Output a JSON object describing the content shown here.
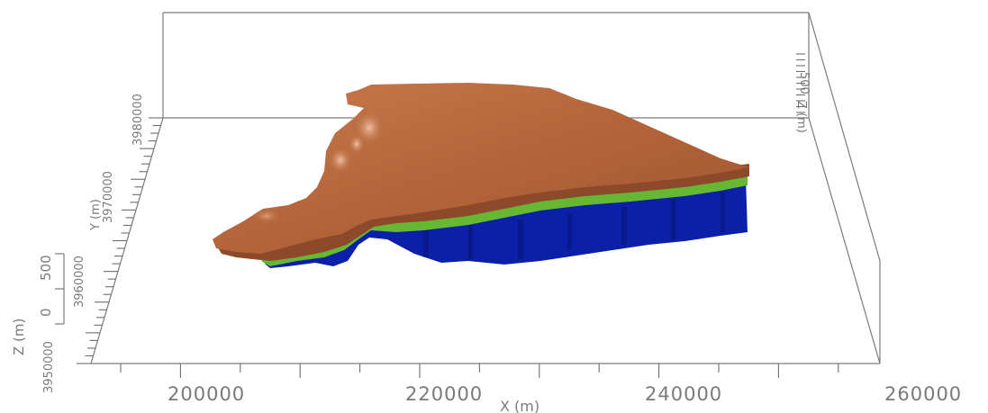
{
  "x_axis": {
    "title": "X (m)",
    "ticks": [
      "200000",
      "220000",
      "240000",
      "260000"
    ]
  },
  "y_axis": {
    "title": "Y (m)",
    "ticks": [
      "3950000",
      "3960000",
      "3970000",
      "3980000"
    ]
  },
  "z_axis": {
    "title": "Z (m)",
    "ticks": [
      "0",
      "500"
    ]
  },
  "z_axis_far": {
    "title": "Z (m)",
    "ticks": [
      "500"
    ]
  },
  "colors": {
    "top_surface": "#b8683d",
    "top_highlight": "#e8a27c",
    "middle_layer": "#66b832",
    "bottom_layer": "#0b1fa8",
    "frame": "#7a7a7a"
  }
}
